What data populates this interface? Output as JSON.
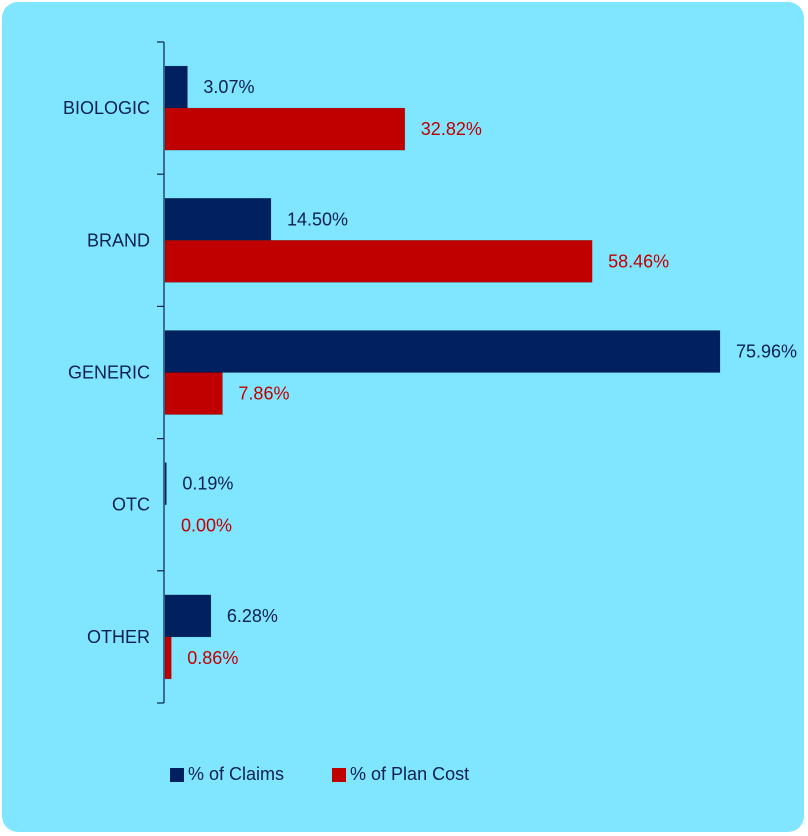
{
  "chart_data": {
    "type": "bar",
    "orientation": "horizontal",
    "categories": [
      "BIOLOGIC",
      "BRAND",
      "GENERIC",
      "OTC",
      "OTHER"
    ],
    "series": [
      {
        "name": "% of Claims",
        "color": "#002060",
        "values": [
          3.07,
          14.5,
          75.96,
          0.19,
          6.28
        ],
        "labels": [
          "3.07%",
          "14.50%",
          "75.96%",
          "0.19%",
          "6.28%"
        ],
        "label_color": "#0d1f4f"
      },
      {
        "name": "% of Plan Cost",
        "color": "#c00000",
        "values": [
          32.82,
          58.46,
          7.86,
          0.0,
          0.86
        ],
        "labels": [
          "32.82%",
          "58.46%",
          "7.86%",
          "0.00%",
          "0.86%"
        ],
        "label_color": "#c00000"
      }
    ],
    "xlim": [
      0,
      75.96
    ],
    "grid": false,
    "legend_position": "bottom"
  },
  "legend": {
    "claims_label": "% of Claims",
    "cost_label": "% of Plan Cost"
  },
  "colors": {
    "background": "#80e6ff",
    "axis": "#0d1f4f"
  }
}
